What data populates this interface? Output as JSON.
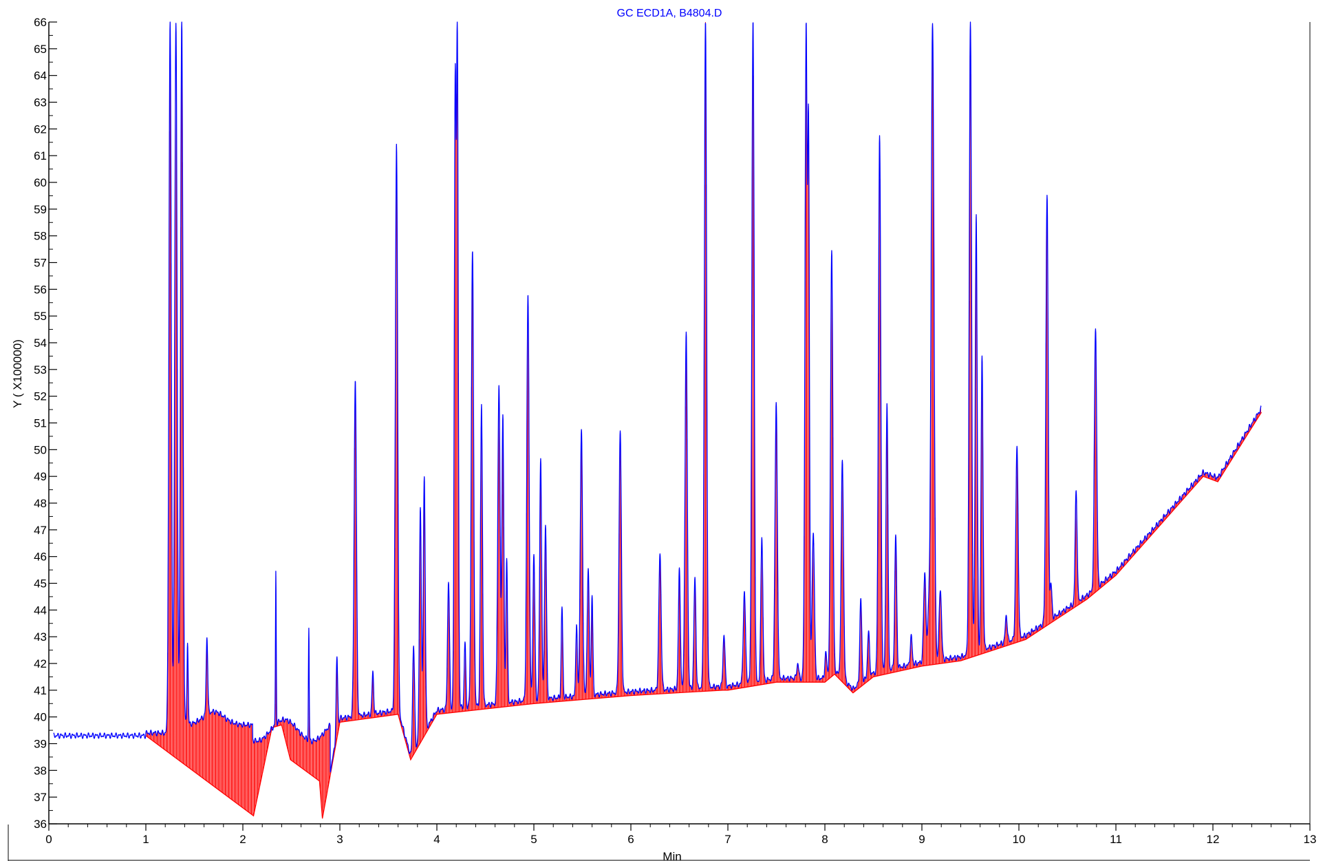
{
  "chart_data": {
    "type": "line",
    "title": "GC ECD1A, B4804.D",
    "xlabel": "Min",
    "ylabel": "Y ( X100000)",
    "xlim": [
      0,
      13
    ],
    "ylim": [
      36,
      66
    ],
    "x_ticks": [
      0,
      1,
      2,
      3,
      4,
      5,
      6,
      7,
      8,
      9,
      10,
      11,
      12,
      13
    ],
    "y_ticks": [
      36,
      37,
      38,
      39,
      40,
      41,
      42,
      43,
      44,
      45,
      46,
      47,
      48,
      49,
      50,
      51,
      52,
      53,
      54,
      55,
      56,
      57,
      58,
      59,
      60,
      61,
      62,
      63,
      64,
      65,
      66
    ],
    "grid": false,
    "series": [
      {
        "color": "#0000ff",
        "baseline_start": 39.3,
        "peaks": [
          [
            1.25,
            66,
            0.012
          ],
          [
            1.31,
            66,
            0.012
          ],
          [
            1.37,
            66,
            0.012
          ],
          [
            1.43,
            42.8,
            0.006
          ],
          [
            1.63,
            43.0,
            0.008
          ],
          [
            2.34,
            45.4,
            0.004
          ],
          [
            2.68,
            43.3,
            0.004
          ],
          [
            2.97,
            42.2,
            0.008
          ],
          [
            3.159,
            52.6,
            0.012
          ],
          [
            3.34,
            41.7,
            0.008
          ],
          [
            3.584,
            61.4,
            0.012
          ],
          [
            3.76,
            42.7,
            0.01
          ],
          [
            3.83,
            47.9,
            0.01
          ],
          [
            3.87,
            49.0,
            0.01
          ],
          [
            4.12,
            45.1,
            0.01
          ],
          [
            4.19,
            64.3,
            0.01
          ],
          [
            4.21,
            66,
            0.01
          ],
          [
            4.29,
            42.8,
            0.008
          ],
          [
            4.367,
            57.4,
            0.012
          ],
          [
            4.46,
            51.7,
            0.01
          ],
          [
            4.64,
            52.4,
            0.012
          ],
          [
            4.68,
            51.3,
            0.01
          ],
          [
            4.72,
            46.0,
            0.008
          ],
          [
            4.939,
            55.8,
            0.012
          ],
          [
            5.0,
            46.1,
            0.01
          ],
          [
            5.07,
            49.7,
            0.01
          ],
          [
            5.12,
            47.2,
            0.01
          ],
          [
            5.29,
            44.1,
            0.008
          ],
          [
            5.44,
            43.5,
            0.008
          ],
          [
            5.49,
            50.7,
            0.012
          ],
          [
            5.56,
            45.6,
            0.01
          ],
          [
            5.6,
            44.6,
            0.008
          ],
          [
            5.89,
            50.7,
            0.012
          ],
          [
            6.3,
            46.1,
            0.012
          ],
          [
            6.5,
            45.5,
            0.01
          ],
          [
            6.57,
            54.3,
            0.012
          ],
          [
            6.66,
            45.2,
            0.01
          ],
          [
            6.769,
            66,
            0.012
          ],
          [
            6.96,
            43.1,
            0.01
          ],
          [
            7.17,
            44.6,
            0.012
          ],
          [
            7.259,
            66,
            0.012
          ],
          [
            7.35,
            46.8,
            0.01
          ],
          [
            7.498,
            51.7,
            0.012
          ],
          [
            7.72,
            42.0,
            0.01
          ],
          [
            7.807,
            66,
            0.012
          ],
          [
            7.83,
            63.0,
            0.01
          ],
          [
            7.88,
            46.9,
            0.012
          ],
          [
            8.01,
            42.4,
            0.01
          ],
          [
            8.07,
            57.5,
            0.012
          ],
          [
            8.18,
            49.6,
            0.012
          ],
          [
            8.37,
            44.4,
            0.01
          ],
          [
            8.45,
            43.2,
            0.01
          ],
          [
            8.564,
            61.8,
            0.012
          ],
          [
            8.64,
            51.8,
            0.01
          ],
          [
            8.73,
            46.8,
            0.01
          ],
          [
            8.89,
            43.0,
            0.01
          ],
          [
            9.03,
            45.4,
            0.012
          ],
          [
            9.07,
            44.0,
            0.01
          ],
          [
            9.11,
            66,
            0.015
          ],
          [
            9.19,
            44.8,
            0.012
          ],
          [
            9.5,
            66,
            0.012
          ],
          [
            9.56,
            58.8,
            0.01
          ],
          [
            9.62,
            53.5,
            0.01
          ],
          [
            9.87,
            43.8,
            0.01
          ],
          [
            9.98,
            50.1,
            0.012
          ],
          [
            10.29,
            59.5,
            0.012
          ],
          [
            10.33,
            45.0,
            0.01
          ],
          [
            10.59,
            48.5,
            0.01
          ],
          [
            10.79,
            54.6,
            0.012
          ]
        ]
      },
      {
        "color": "#ff0000",
        "baseline": [
          [
            1.0,
            39.3
          ],
          [
            2.11,
            36.3
          ],
          [
            2.3,
            39.6
          ],
          [
            2.4,
            39.7
          ],
          [
            2.49,
            38.4
          ],
          [
            2.79,
            37.6
          ],
          [
            2.82,
            36.2
          ],
          [
            3.0,
            39.8
          ],
          [
            3.6,
            40.1
          ],
          [
            3.73,
            38.4
          ],
          [
            4.0,
            40.1
          ],
          [
            5.0,
            40.5
          ],
          [
            6.0,
            40.8
          ],
          [
            6.95,
            41.0
          ],
          [
            7.0,
            41.0
          ],
          [
            7.5,
            41.3
          ],
          [
            8.0,
            41.3
          ],
          [
            8.1,
            41.6
          ],
          [
            8.29,
            40.9
          ],
          [
            8.5,
            41.5
          ],
          [
            9.0,
            41.9
          ],
          [
            9.4,
            42.1
          ],
          [
            10.07,
            42.9
          ],
          [
            10.7,
            44.4
          ],
          [
            11.0,
            45.3
          ],
          [
            11.9,
            49.0
          ],
          [
            12.05,
            48.8
          ],
          [
            12.5,
            51.4
          ]
        ]
      }
    ]
  }
}
